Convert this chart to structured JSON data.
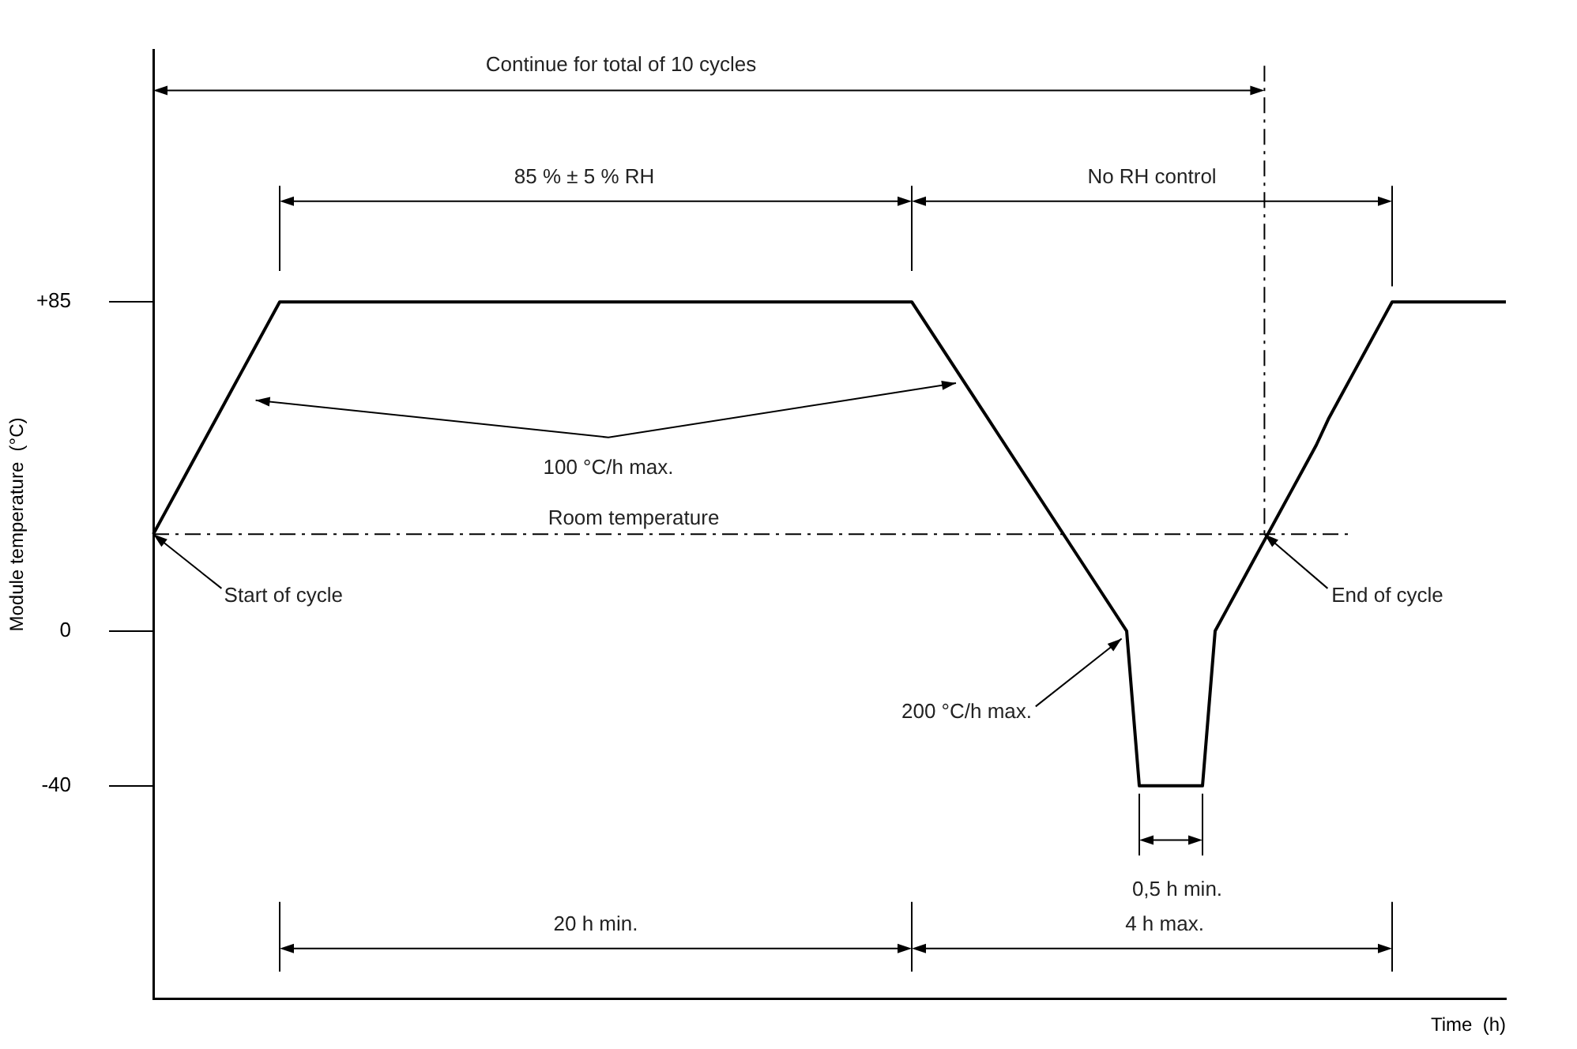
{
  "chart_data": {
    "type": "line",
    "xlabel": "Time  (h)",
    "ylabel": "Module temperature  (°C)",
    "categories": [
      null,
      null,
      null,
      null,
      null,
      null,
      null,
      null,
      null,
      null,
      null,
      null,
      null,
      null,
      null,
      null,
      null,
      null,
      null,
      null,
      null,
      null,
      null,
      null,
      null,
      null,
      null,
      null,
      null,
      null,
      null,
      null,
      null,
      null,
      null,
      null,
      null,
      null,
      null,
      null,
      null,
      null,
      null,
      null,
      null,
      null,
      null,
      null,
      null,
      null,
      null,
      null,
      null,
      null,
      null,
      null,
      null,
      null,
      null,
      null,
      null,
      null,
      null,
      null,
      null,
      null,
      null,
      null,
      null,
      null,
      null,
      null,
      null,
      null,
      null,
      null,
      null,
      null,
      null,
      null,
      null,
      null,
      null,
      null,
      null,
      null,
      null,
      null,
      null,
      null,
      null,
      null,
      null,
      null,
      null,
      null,
      null,
      null,
      null,
      null,
      null,
      null,
      null,
      null,
      null,
      null,
      null,
      null
    ],
    "series": [
      {
        "color": "#000000",
        "values": [
          25,
          31,
          37,
          43,
          49,
          55,
          61,
          67,
          73,
          79,
          85,
          85,
          85,
          85,
          85,
          85,
          85,
          85,
          85,
          85,
          85,
          85,
          85,
          85,
          85,
          85,
          85,
          85,
          85,
          85,
          85,
          85,
          85,
          85,
          85,
          85,
          85,
          85,
          85,
          85,
          85,
          85,
          85,
          85,
          85,
          85,
          85,
          85,
          85,
          85,
          85,
          85,
          85,
          85,
          85,
          85,
          85,
          85,
          85,
          85,
          85,
          80,
          75,
          70,
          65,
          60,
          55,
          50,
          45,
          40,
          35,
          30,
          25,
          20,
          15,
          10,
          5,
          0,
          -40,
          -40,
          -40,
          -40,
          -40,
          -40,
          0,
          6,
          12,
          18,
          24,
          30,
          36,
          42,
          48,
          55,
          61,
          67,
          73,
          79,
          85,
          85,
          85,
          85,
          85,
          85,
          85,
          85,
          85,
          85
        ]
      }
    ],
    "ylim": [
      -95,
      150
    ],
    "yticks": [
      {
        "value": 85,
        "label": "+85"
      },
      0,
      -40
    ],
    "grid": false,
    "legend": false,
    "marker": "none",
    "line_style": "solid",
    "tick_labels": "y",
    "ref_lines": [
      {
        "axis": "y",
        "value": 25,
        "label": "Room temperature",
        "line_style": "dashed",
        "color": "#000000"
      }
    ],
    "annotations": [
      "Continue for total of 10 cycles",
      "85 % ± 5 % RH",
      "No RH control",
      "100 °C/h max.",
      "Start of cycle",
      "End of cycle",
      "200 °C/h max.",
      "0,5 h min.",
      "20 h min.",
      "4 h max."
    ]
  }
}
